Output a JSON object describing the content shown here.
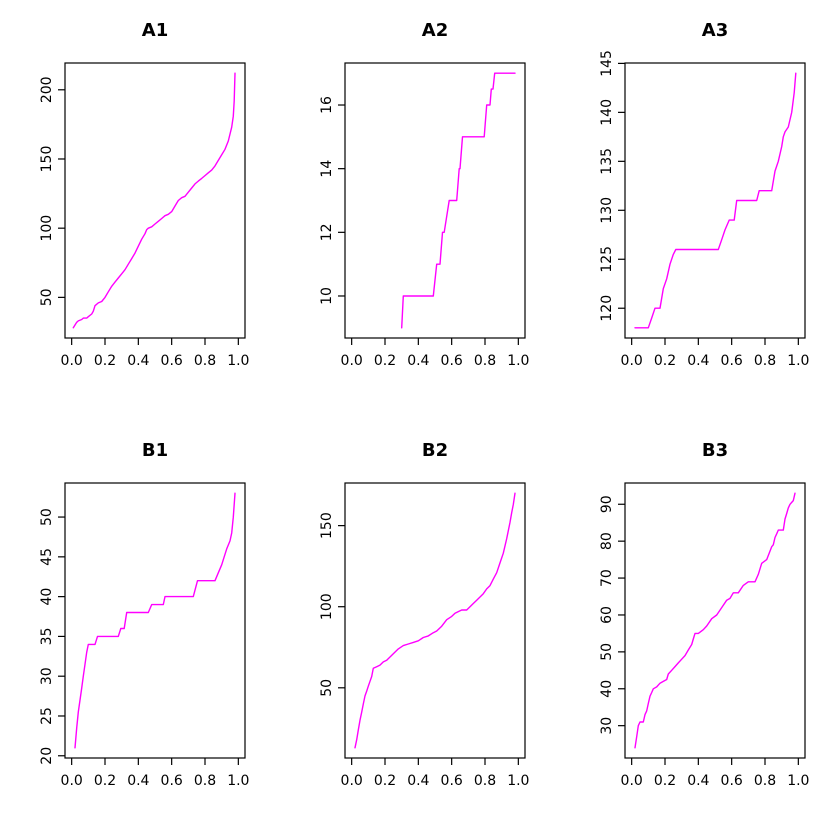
{
  "colors": {
    "line": "#FF00FF",
    "axis": "#000000",
    "background": "#FFFFFF"
  },
  "layout": {
    "rows": 2,
    "cols": 3
  },
  "chart_data": [
    {
      "type": "line",
      "title": "A1",
      "xlabel": "",
      "ylabel": "",
      "x_ticks": [
        "0.0",
        "0.2",
        "0.4",
        "0.6",
        "0.8",
        "1.0"
      ],
      "y_ticks": [
        "50",
        "100",
        "150",
        "200"
      ],
      "xlim": [
        0,
        1
      ],
      "ylim": [
        28,
        212
      ],
      "grid": false,
      "legend": null,
      "line_color": "#FF00FF",
      "points": [
        [
          0.01,
          28
        ],
        [
          0.02,
          30
        ],
        [
          0.03,
          32
        ],
        [
          0.04,
          33
        ],
        [
          0.06,
          34
        ],
        [
          0.07,
          35
        ],
        [
          0.09,
          35
        ],
        [
          0.1,
          36
        ],
        [
          0.12,
          38
        ],
        [
          0.13,
          40
        ],
        [
          0.14,
          44
        ],
        [
          0.16,
          46
        ],
        [
          0.18,
          47
        ],
        [
          0.2,
          50
        ],
        [
          0.22,
          54
        ],
        [
          0.24,
          58
        ],
        [
          0.26,
          61
        ],
        [
          0.28,
          64
        ],
        [
          0.3,
          67
        ],
        [
          0.32,
          70
        ],
        [
          0.34,
          74
        ],
        [
          0.36,
          78
        ],
        [
          0.38,
          82
        ],
        [
          0.4,
          87
        ],
        [
          0.42,
          92
        ],
        [
          0.44,
          96
        ],
        [
          0.45,
          99
        ],
        [
          0.46,
          100
        ],
        [
          0.48,
          101
        ],
        [
          0.5,
          103
        ],
        [
          0.52,
          105
        ],
        [
          0.54,
          107
        ],
        [
          0.56,
          109
        ],
        [
          0.58,
          110
        ],
        [
          0.6,
          112
        ],
        [
          0.62,
          116
        ],
        [
          0.64,
          120
        ],
        [
          0.66,
          122
        ],
        [
          0.68,
          123
        ],
        [
          0.7,
          126
        ],
        [
          0.72,
          129
        ],
        [
          0.74,
          132
        ],
        [
          0.76,
          134
        ],
        [
          0.78,
          136
        ],
        [
          0.8,
          138
        ],
        [
          0.82,
          140
        ],
        [
          0.84,
          142
        ],
        [
          0.86,
          145
        ],
        [
          0.88,
          149
        ],
        [
          0.9,
          153
        ],
        [
          0.92,
          157
        ],
        [
          0.94,
          163
        ],
        [
          0.95,
          168
        ],
        [
          0.96,
          173
        ],
        [
          0.97,
          181
        ],
        [
          0.975,
          192
        ],
        [
          0.98,
          212
        ]
      ]
    },
    {
      "type": "line",
      "title": "A2",
      "xlabel": "",
      "ylabel": "",
      "x_ticks": [
        "0.0",
        "0.2",
        "0.4",
        "0.6",
        "0.8",
        "1.0"
      ],
      "y_ticks": [
        "10",
        "12",
        "14",
        "16"
      ],
      "xlim": [
        0,
        1
      ],
      "ylim": [
        9,
        17
      ],
      "grid": false,
      "legend": null,
      "line_color": "#FF00FF",
      "points": [
        [
          0.3,
          9
        ],
        [
          0.31,
          10
        ],
        [
          0.49,
          10
        ],
        [
          0.51,
          11
        ],
        [
          0.53,
          11
        ],
        [
          0.545,
          12
        ],
        [
          0.555,
          12
        ],
        [
          0.585,
          13
        ],
        [
          0.63,
          13
        ],
        [
          0.645,
          14
        ],
        [
          0.65,
          14
        ],
        [
          0.665,
          15
        ],
        [
          0.795,
          15
        ],
        [
          0.81,
          16
        ],
        [
          0.83,
          16
        ],
        [
          0.838,
          16.5
        ],
        [
          0.848,
          16.5
        ],
        [
          0.858,
          17
        ],
        [
          0.98,
          17
        ]
      ]
    },
    {
      "type": "line",
      "title": "A3",
      "xlabel": "",
      "ylabel": "",
      "x_ticks": [
        "0.0",
        "0.2",
        "0.4",
        "0.6",
        "0.8",
        "1.0"
      ],
      "y_ticks": [
        "120",
        "125",
        "130",
        "135",
        "140",
        "145"
      ],
      "xlim": [
        0,
        1
      ],
      "ylim": [
        118,
        144
      ],
      "grid": false,
      "legend": null,
      "line_color": "#FF00FF",
      "points": [
        [
          0.02,
          118
        ],
        [
          0.1,
          118
        ],
        [
          0.12,
          119
        ],
        [
          0.14,
          120
        ],
        [
          0.17,
          120
        ],
        [
          0.19,
          122
        ],
        [
          0.21,
          123
        ],
        [
          0.23,
          124.5
        ],
        [
          0.25,
          125.5
        ],
        [
          0.265,
          126
        ],
        [
          0.52,
          126
        ],
        [
          0.54,
          127
        ],
        [
          0.56,
          128
        ],
        [
          0.585,
          129
        ],
        [
          0.615,
          129
        ],
        [
          0.63,
          131
        ],
        [
          0.75,
          131
        ],
        [
          0.765,
          132
        ],
        [
          0.84,
          132
        ],
        [
          0.86,
          134
        ],
        [
          0.88,
          135
        ],
        [
          0.9,
          136.5
        ],
        [
          0.91,
          137.5
        ],
        [
          0.92,
          138
        ],
        [
          0.94,
          138.5
        ],
        [
          0.96,
          140
        ],
        [
          0.975,
          142
        ],
        [
          0.985,
          144
        ]
      ]
    },
    {
      "type": "line",
      "title": "B1",
      "xlabel": "",
      "ylabel": "",
      "x_ticks": [
        "0.0",
        "0.2",
        "0.4",
        "0.6",
        "0.8",
        "1.0"
      ],
      "y_ticks": [
        "20",
        "25",
        "30",
        "35",
        "40",
        "45",
        "50"
      ],
      "xlim": [
        0,
        1
      ],
      "ylim": [
        21,
        53
      ],
      "grid": false,
      "legend": null,
      "line_color": "#FF00FF",
      "points": [
        [
          0.02,
          21
        ],
        [
          0.03,
          23.5
        ],
        [
          0.04,
          25.5
        ],
        [
          0.05,
          27
        ],
        [
          0.06,
          28.5
        ],
        [
          0.07,
          30
        ],
        [
          0.08,
          31.5
        ],
        [
          0.09,
          33
        ],
        [
          0.1,
          34
        ],
        [
          0.14,
          34
        ],
        [
          0.155,
          35
        ],
        [
          0.28,
          35
        ],
        [
          0.295,
          36
        ],
        [
          0.315,
          36
        ],
        [
          0.33,
          38
        ],
        [
          0.46,
          38
        ],
        [
          0.48,
          39
        ],
        [
          0.55,
          39
        ],
        [
          0.56,
          40
        ],
        [
          0.73,
          40
        ],
        [
          0.755,
          42
        ],
        [
          0.86,
          42
        ],
        [
          0.88,
          43
        ],
        [
          0.9,
          44
        ],
        [
          0.915,
          45
        ],
        [
          0.93,
          46
        ],
        [
          0.95,
          47
        ],
        [
          0.96,
          48
        ],
        [
          0.97,
          50
        ],
        [
          0.98,
          53
        ]
      ]
    },
    {
      "type": "line",
      "title": "B2",
      "xlabel": "",
      "ylabel": "",
      "x_ticks": [
        "0.0",
        "0.2",
        "0.4",
        "0.6",
        "0.8",
        "1.0"
      ],
      "y_ticks": [
        "50",
        "100",
        "150"
      ],
      "xlim": [
        0,
        1
      ],
      "ylim": [
        13,
        170
      ],
      "grid": false,
      "legend": null,
      "line_color": "#FF00FF",
      "points": [
        [
          0.02,
          13
        ],
        [
          0.03,
          18
        ],
        [
          0.04,
          24
        ],
        [
          0.05,
          30
        ],
        [
          0.06,
          35
        ],
        [
          0.07,
          40
        ],
        [
          0.08,
          45
        ],
        [
          0.09,
          48
        ],
        [
          0.1,
          51
        ],
        [
          0.11,
          54
        ],
        [
          0.12,
          57
        ],
        [
          0.13,
          62
        ],
        [
          0.15,
          63
        ],
        [
          0.17,
          64
        ],
        [
          0.19,
          66
        ],
        [
          0.21,
          67
        ],
        [
          0.23,
          69
        ],
        [
          0.25,
          71
        ],
        [
          0.28,
          74
        ],
        [
          0.31,
          76
        ],
        [
          0.34,
          77
        ],
        [
          0.37,
          78
        ],
        [
          0.4,
          79
        ],
        [
          0.43,
          81
        ],
        [
          0.46,
          82
        ],
        [
          0.49,
          84
        ],
        [
          0.51,
          85
        ],
        [
          0.54,
          88
        ],
        [
          0.57,
          92
        ],
        [
          0.6,
          94
        ],
        [
          0.62,
          96
        ],
        [
          0.64,
          97
        ],
        [
          0.66,
          98
        ],
        [
          0.69,
          98
        ],
        [
          0.71,
          100
        ],
        [
          0.73,
          102
        ],
        [
          0.75,
          104
        ],
        [
          0.77,
          106
        ],
        [
          0.79,
          108
        ],
        [
          0.81,
          111
        ],
        [
          0.83,
          113
        ],
        [
          0.85,
          117
        ],
        [
          0.87,
          121
        ],
        [
          0.89,
          127
        ],
        [
          0.91,
          133
        ],
        [
          0.93,
          142
        ],
        [
          0.95,
          152
        ],
        [
          0.96,
          158
        ],
        [
          0.97,
          163
        ],
        [
          0.98,
          170
        ]
      ]
    },
    {
      "type": "line",
      "title": "B3",
      "xlabel": "",
      "ylabel": "",
      "x_ticks": [
        "0.0",
        "0.2",
        "0.4",
        "0.6",
        "0.8",
        "1.0"
      ],
      "y_ticks": [
        "30",
        "40",
        "50",
        "60",
        "70",
        "80",
        "90"
      ],
      "xlim": [
        0,
        1
      ],
      "ylim": [
        24,
        93
      ],
      "grid": false,
      "legend": null,
      "line_color": "#FF00FF",
      "points": [
        [
          0.02,
          24
        ],
        [
          0.03,
          27
        ],
        [
          0.04,
          30
        ],
        [
          0.05,
          31
        ],
        [
          0.07,
          31
        ],
        [
          0.08,
          33
        ],
        [
          0.09,
          34
        ],
        [
          0.1,
          36
        ],
        [
          0.11,
          38
        ],
        [
          0.12,
          39
        ],
        [
          0.13,
          40
        ],
        [
          0.15,
          40.5
        ],
        [
          0.17,
          41.5
        ],
        [
          0.19,
          42
        ],
        [
          0.21,
          42.5
        ],
        [
          0.22,
          44
        ],
        [
          0.24,
          45
        ],
        [
          0.26,
          46
        ],
        [
          0.28,
          47
        ],
        [
          0.3,
          48
        ],
        [
          0.32,
          49
        ],
        [
          0.34,
          50.5
        ],
        [
          0.36,
          52
        ],
        [
          0.37,
          53.5
        ],
        [
          0.38,
          55
        ],
        [
          0.4,
          55
        ],
        [
          0.43,
          56
        ],
        [
          0.45,
          57
        ],
        [
          0.48,
          59
        ],
        [
          0.51,
          60
        ],
        [
          0.54,
          62
        ],
        [
          0.57,
          64
        ],
        [
          0.59,
          64.5
        ],
        [
          0.61,
          66
        ],
        [
          0.64,
          66
        ],
        [
          0.67,
          68
        ],
        [
          0.7,
          69
        ],
        [
          0.74,
          69
        ],
        [
          0.76,
          71
        ],
        [
          0.78,
          74
        ],
        [
          0.81,
          75
        ],
        [
          0.84,
          78.5
        ],
        [
          0.85,
          79
        ],
        [
          0.86,
          81
        ],
        [
          0.87,
          82
        ],
        [
          0.88,
          83
        ],
        [
          0.91,
          83
        ],
        [
          0.92,
          86
        ],
        [
          0.93,
          87.5
        ],
        [
          0.94,
          89
        ],
        [
          0.95,
          90
        ],
        [
          0.96,
          90.5
        ],
        [
          0.97,
          91
        ],
        [
          0.98,
          93
        ]
      ]
    }
  ]
}
